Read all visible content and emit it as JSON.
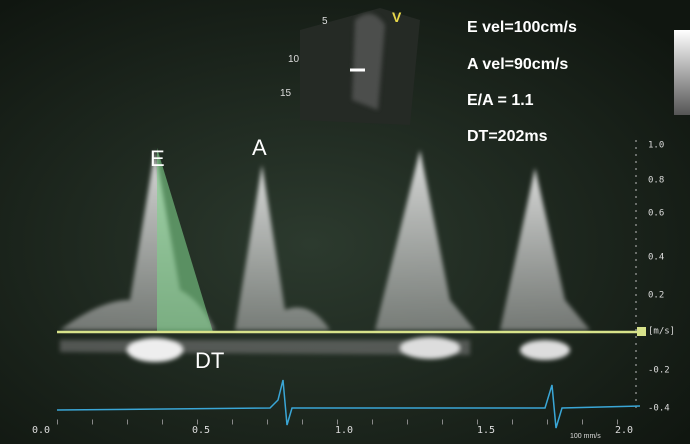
{
  "measurements": [
    "E vel=100cm/s",
    "A vel=90cm/s",
    "E/A = 1.1",
    "DT=202ms"
  ],
  "wave_labels": {
    "e": "E",
    "a": "A",
    "dt": "DT"
  },
  "probe_marker": "V",
  "depth_labels": [
    "5",
    "10",
    "15"
  ],
  "velocity_scale": {
    "ticks": [
      "1.0",
      "0.8",
      "0.6",
      "0.4",
      "0.2",
      "[m/s]",
      "-0.2",
      "-0.4"
    ]
  },
  "time_axis": {
    "ticks": [
      "0.0",
      "0.5",
      "1.0",
      "1.5",
      "2.0"
    ],
    "sweep": "100 mm/s"
  }
}
